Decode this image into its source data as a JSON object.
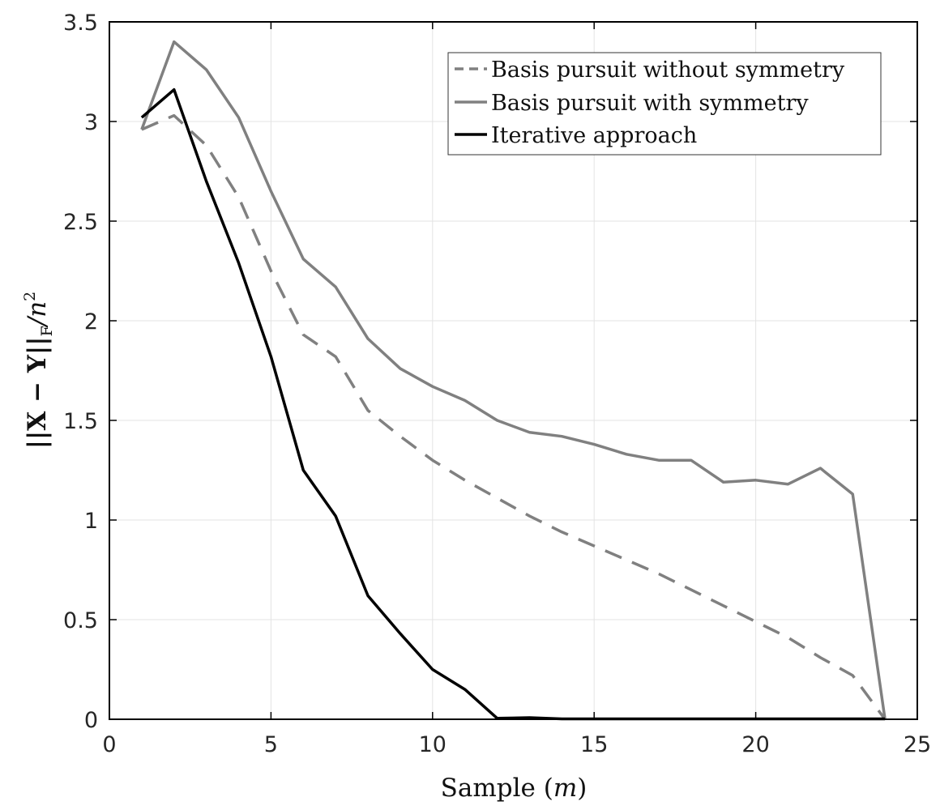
{
  "chart_data": {
    "type": "line",
    "xlabel": "Sample (m)",
    "ylabel": "||X − Y||F/n²",
    "ylabel_parts": {
      "norm": "||X − Y||",
      "sub": "F",
      "tail": "/n",
      "sup": "2"
    },
    "xlabel_parts": {
      "pre": "Sample (",
      "var": "m",
      "post": ")"
    },
    "xlim": [
      0,
      25
    ],
    "ylim": [
      0,
      3.5
    ],
    "xticks": [
      0,
      5,
      10,
      15,
      20,
      25
    ],
    "xtick_labels": [
      "0",
      "5",
      "10",
      "15",
      "20",
      "25"
    ],
    "yticks": [
      0,
      0.5,
      1,
      1.5,
      2,
      2.5,
      3,
      3.5
    ],
    "ytick_labels": [
      "0",
      "0.5",
      "1",
      "1.5",
      "2",
      "2.5",
      "3",
      "3.5"
    ],
    "grid": true,
    "legend_position": "top-right",
    "x": [
      1,
      2,
      3,
      4,
      5,
      6,
      7,
      8,
      9,
      10,
      11,
      12,
      13,
      14,
      15,
      16,
      17,
      18,
      19,
      20,
      21,
      22,
      23,
      24
    ],
    "series": [
      {
        "name": "Basis pursuit without symmetry",
        "color": "#808080",
        "dash": "dashed",
        "values": [
          2.96,
          3.03,
          2.88,
          2.62,
          2.25,
          1.93,
          1.82,
          1.55,
          1.42,
          1.3,
          1.2,
          1.11,
          1.02,
          0.94,
          0.87,
          0.8,
          0.73,
          0.65,
          0.57,
          0.49,
          0.41,
          0.31,
          0.22,
          0.0
        ]
      },
      {
        "name": "Basis pursuit with symmetry",
        "color": "#808080",
        "dash": "solid",
        "values": [
          2.96,
          3.4,
          3.26,
          3.02,
          2.65,
          2.31,
          2.17,
          1.91,
          1.76,
          1.67,
          1.6,
          1.5,
          1.44,
          1.42,
          1.38,
          1.33,
          1.3,
          1.3,
          1.19,
          1.2,
          1.18,
          1.26,
          1.13,
          0.0
        ]
      },
      {
        "name": "Iterative approach",
        "color": "#000000",
        "dash": "solid",
        "values": [
          3.02,
          3.16,
          2.7,
          2.29,
          1.82,
          1.25,
          1.02,
          0.62,
          0.43,
          0.25,
          0.15,
          0.005,
          0.008,
          0.002,
          0.002,
          0.002,
          0.002,
          0.002,
          0.002,
          0.002,
          0.002,
          0.002,
          0.002,
          0.002
        ]
      }
    ]
  }
}
